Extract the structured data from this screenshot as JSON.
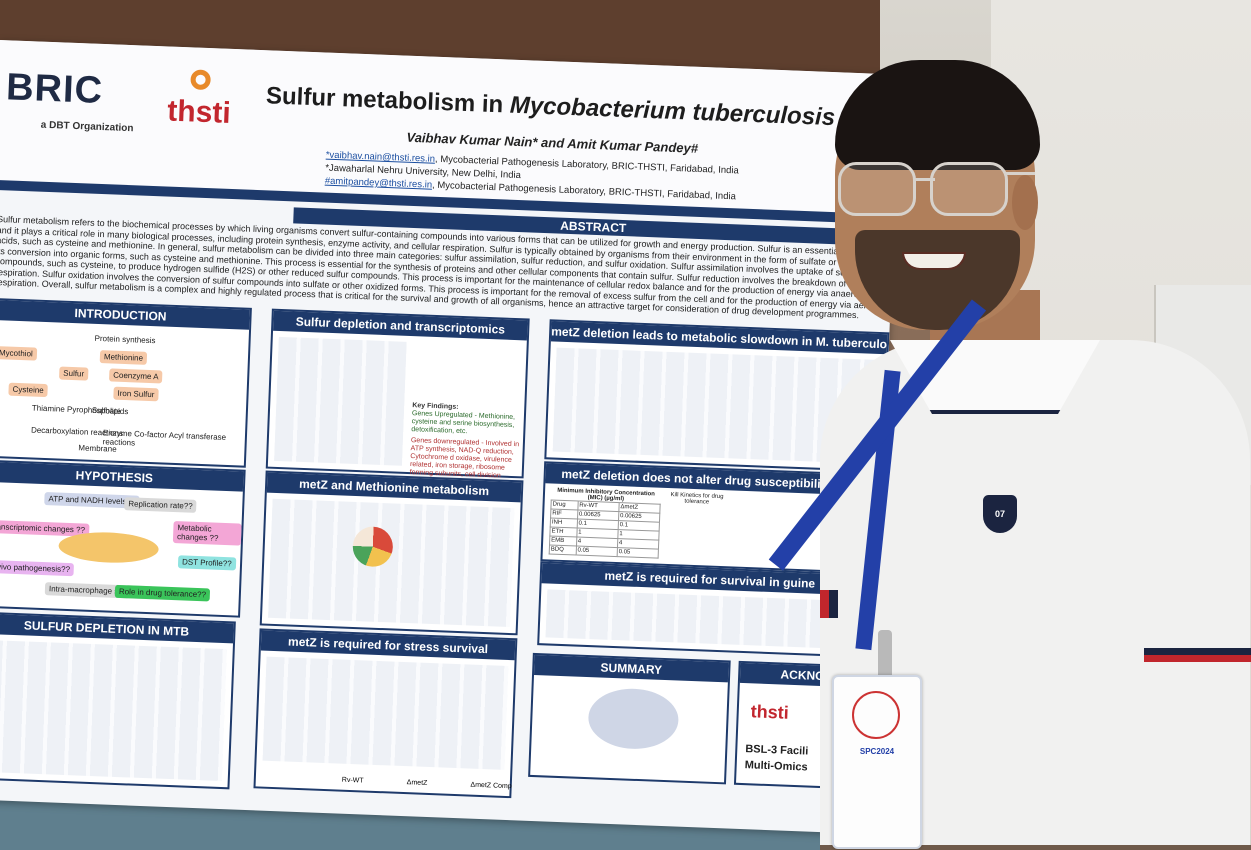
{
  "poster": {
    "logo_bric": "BRIC",
    "logo_bric_sub": "a DBT Organization",
    "logo_thsti": "thsti",
    "title_pre": "Sulfur metabolism in ",
    "title_italic": "Mycobacterium tuberculosis",
    "authors": "Vaibhav Kumar Nain* and Amit Kumar Pandey#",
    "aff1_email": "*vaibhav.nain@thsti.res.in",
    "aff1_rest": ", Mycobacterial Pathogenesis Laboratory, BRIC-THSTI, Faridabad, India",
    "aff2": "*Jawaharlal Nehru University, New Delhi, India",
    "aff3_email": "#amitpandey@thsti.res.in",
    "aff3_rest": ", Mycobacterial Pathogenesis Laboratory, BRIC-THSTI, Faridabad, India",
    "abstract_heading": "ABSTRACT",
    "abstract_text": "Sulfur metabolism refers to the biochemical processes by which living organisms convert sulfur-containing compounds into various forms that can be utilized for growth and energy production. Sulfur is an essential element, and it plays a critical role in many biological processes, including protein synthesis, enzyme activity, and cellular respiration. Sulfur is typically obtained by organisms from their environment in the form of sulfate or amino acids, such as cysteine and methionine. In general, sulfur metabolism can be divided into three main categories: sulfur assimilation, sulfur reduction, and sulfur oxidation. Sulfur assimilation involves the uptake of sulfate and its conversion into organic forms, such as cysteine and methionine. This process is essential for the synthesis of proteins and other cellular components that contain sulfur. Sulfur reduction involves the breakdown of sulfur compounds, such as cysteine, to produce hydrogen sulfide (H2S) or other reduced sulfur compounds. This process is important for the maintenance of cellular redox balance and for the production of energy via anaerobic respiration. Sulfur oxidation involves the conversion of sulfur compounds into sulfate or other oxidized forms. This process is important for the removal of excess sulfur from the cell and for the production of energy via aerobic respiration. Overall, sulfur metabolism is a complex and highly regulated process that is critical for the survival and growth of all organisms, hence an attractive target for consideration of drug development programmes.",
    "panels": {
      "introduction": "INTRODUCTION",
      "sulfur_depletion_transcriptomics": "Sulfur depletion and transcriptomics",
      "metz_deletion_slowdown": "metZ deletion leads to metabolic slowdown in M. tuberculosis at acid",
      "hypothesis": "HYPOTHESIS",
      "metz_methionine": "metZ and Methionine metabolism",
      "metz_drug": "metZ deletion does not alter drug susceptibility and c",
      "metz_guinea": "metZ is required for survival in guine",
      "sulfur_depletion_mtb": "SULFUR DEPLETION IN MTB",
      "metz_stress": "metZ is required for stress survival",
      "summary": "SUMMARY",
      "acknowledgement": "ACKNOW"
    },
    "intro_nodes": [
      "Protein synthesis",
      "Methionine",
      "Coenzyme A",
      "Sulfur",
      "Cysteine",
      "Thiamine Pyrophosphate",
      "Sulfolipids",
      "Iron Sulfur",
      "Mycothiol",
      "Decarboxylation reactions",
      "Enzyme Co-factor Acyl transferase reactions",
      "Membrane"
    ],
    "hypothesis_nodes": [
      "ATP and NADH levels??",
      "Replication rate??",
      "Metabolic changes ??",
      "Transcriptomic changes ??",
      "DST Profile??",
      "In-vivo pathogenesis??",
      "Intra-macrophage survival??",
      "Role in drug tolerance??"
    ],
    "key_findings_title": "Key Findings:",
    "key_finding_1": "Genes Upregulated - Methionine, cysteine and serine biosynthesis, detoxification, etc.",
    "key_finding_2": "Genes downregulated - Involved in ATP synthesis, NAD-Q reduction, Cytochrome d oxidase, virulence related, iron storage, ribosome forming subunits, cell division related genes.",
    "mic_table": {
      "title": "Minimum Inhibitory Concentration (MIC) (µg/ml)",
      "headers": [
        "Drug",
        "Rv-WT",
        "ΔmetZ"
      ],
      "rows": [
        [
          "RIF",
          "0.00625",
          "0.00625"
        ],
        [
          "INH",
          "0.1",
          "0.1"
        ],
        [
          "ETH",
          "1",
          "1"
        ],
        [
          "EMB",
          "4",
          "4"
        ],
        [
          "BDQ",
          "0.05",
          "0.05"
        ]
      ]
    },
    "kill_kinetics": "Kill Kinetics for drug tolerance",
    "stress_labels": [
      "Rv-WT",
      "ΔmetZ",
      "ΔmetZ Comp"
    ],
    "ack_logo": "thsti",
    "ack_text_1": "BSL-3 Facili",
    "ack_text_2": "Multi-Omics"
  },
  "person": {
    "emblem_text": "07",
    "badge_text": "SPC2024"
  },
  "colors": {
    "poster_navy": "#1e3a6b",
    "bric_dark": "#1f2a44",
    "thsti_red": "#c2262e",
    "thsti_orange": "#e88a2a",
    "lanyard_blue": "#2340a8",
    "shirt_white": "#f1f1f0",
    "stripe_red": "#c1262c",
    "stripe_navy": "#1b2440"
  },
  "icons": [
    "bric-logo",
    "thsti-logo",
    "shirt-emblem",
    "badge-logo"
  ]
}
